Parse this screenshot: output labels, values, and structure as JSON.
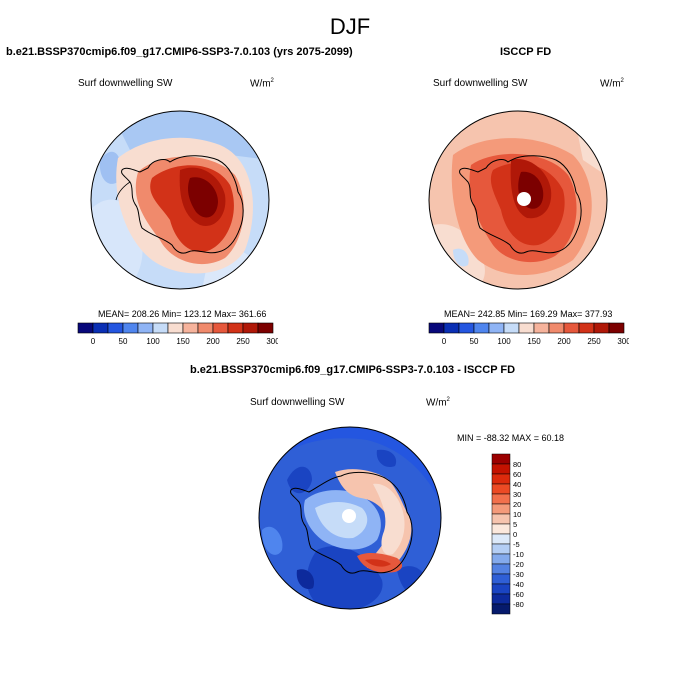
{
  "main_title": "DJF",
  "panels": {
    "model": {
      "title": "b.e21.BSSP370cmip6.f09_g17.CMIP6-SSP3-7.0.103 (yrs 2075-2099)",
      "variable": "Surf downwelling SW",
      "units_base": "W/m",
      "units_exp": "2",
      "stats": "MEAN= 208.26  Min= 123.12  Max= 361.66"
    },
    "obs": {
      "title": "ISCCP FD",
      "variable": "Surf downwelling SW",
      "units_base": "W/m",
      "units_exp": "2",
      "stats": "MEAN= 242.85  Min= 169.29  Max= 377.93"
    },
    "diff": {
      "title": "b.e21.BSSP370cmip6.f09_g17.CMIP6-SSP3-7.0.103 - ISCCP FD",
      "variable": "Surf downwelling SW",
      "units_base": "W/m",
      "units_exp": "2",
      "stats": "MIN = -88.32 MAX =  60.18"
    }
  },
  "colorbar_abs": {
    "colors": [
      "#08087a",
      "#0a2fb4",
      "#2456e0",
      "#4f85ee",
      "#8fb4f5",
      "#c6dcf8",
      "#f8ddd0",
      "#f6b39c",
      "#f08a6c",
      "#e6583c",
      "#d23218",
      "#b01808",
      "#7c0000"
    ],
    "labels": [
      "0",
      "50",
      "100",
      "150",
      "200",
      "250",
      "300",
      "350"
    ]
  },
  "colorbar_diff": {
    "colors": [
      "#9b0000",
      "#c41200",
      "#dc2a0c",
      "#ec4a24",
      "#f2704c",
      "#f49a7a",
      "#f6c4ae",
      "#fbe8dc",
      "#dce9f9",
      "#b4cef4",
      "#84aaec",
      "#5482e2",
      "#2f5fd6",
      "#1a44c2",
      "#0d2a9c",
      "#061a6c"
    ],
    "labels": [
      "80",
      "60",
      "40",
      "30",
      "20",
      "10",
      "5",
      "0",
      "-5",
      "-10",
      "-20",
      "-30",
      "-40",
      "-60",
      "-80"
    ]
  }
}
